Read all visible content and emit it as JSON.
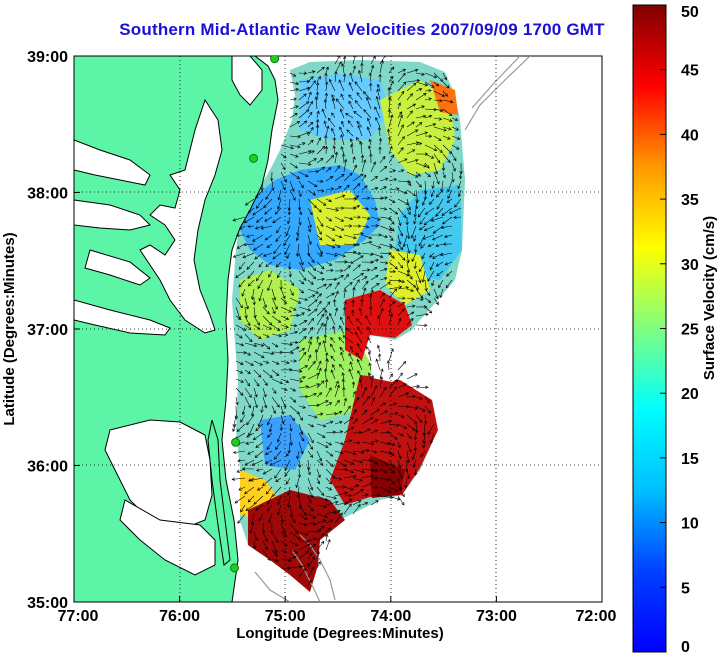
{
  "title": "Southern Mid-Atlantic Raw Velocities 2007/09/09 1700 GMT",
  "x_axis": {
    "label": "Longitude (Degrees:Minutes)",
    "ticks": [
      "77:00",
      "76:00",
      "75:00",
      "74:00",
      "73:00",
      "72:00"
    ],
    "range": [
      -77,
      -72
    ]
  },
  "y_axis": {
    "label": "Latitude (Degrees:Minutes)",
    "ticks": [
      "35:00",
      "36:00",
      "37:00",
      "38:00",
      "39:00"
    ],
    "range": [
      35,
      39
    ]
  },
  "colorbar": {
    "label": "Surface Velocity (cm/s)",
    "ticks": [
      "0",
      "5",
      "10",
      "15",
      "20",
      "25",
      "30",
      "35",
      "40",
      "45",
      "50"
    ],
    "range": [
      0,
      50
    ],
    "colormap": "jet"
  },
  "colors": {
    "land": "#5cf5a8",
    "title": "#1a10d6",
    "coastline": "#000000",
    "site_marker": "#22cc22",
    "bathymetry": "#999999"
  },
  "grid": "dotted",
  "sites": [
    {
      "lon": -75.1,
      "lat": 38.98
    },
    {
      "lon": -75.3,
      "lat": 38.25
    },
    {
      "lon": -75.47,
      "lat": 36.17
    },
    {
      "lon": -75.48,
      "lat": 35.25
    }
  ]
}
